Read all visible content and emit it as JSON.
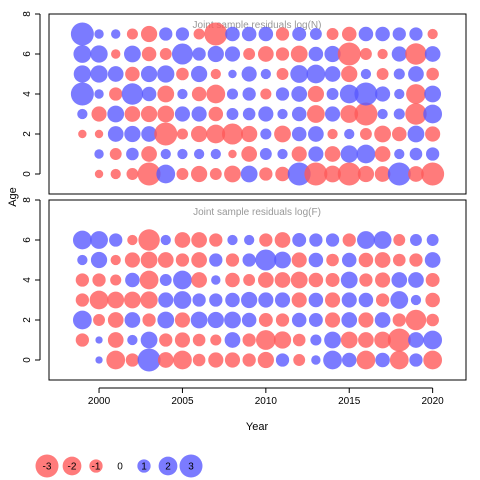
{
  "colors": {
    "negative": "#ff5a5a",
    "positive": "#5a5aff",
    "title": "#999999"
  },
  "chart_data": {
    "type": "scatter",
    "subtype": "bubble",
    "xlabel": "Year",
    "ylabel": "Age",
    "xlim": [
      1997,
      2022
    ],
    "ylim": [
      -1,
      8
    ],
    "x_ticks": [
      2000,
      2005,
      2010,
      2015,
      2020
    ],
    "y_ticks": [
      0,
      2,
      4,
      6,
      8
    ],
    "ages": [
      0,
      1,
      2,
      3,
      4,
      5,
      6,
      7
    ],
    "legend": {
      "position": "bottom-left",
      "values": [
        -3,
        -2,
        -1,
        0,
        1,
        2,
        3
      ]
    },
    "panels": [
      {
        "title": "Joint sample residuals log(N)",
        "year_start": 1999,
        "year_end": 2020,
        "residuals_by_age": [
          [
            0,
            -0.4,
            -0.6,
            -0.8,
            -3.0,
            2.0,
            -0.8,
            -1.5,
            -0.8,
            -1.6,
            1.6,
            -1.0,
            -1.2,
            3.0,
            -3.0,
            -1.6,
            -3.0,
            -1.5,
            -1.4,
            3.0,
            -1.4,
            -3.0
          ],
          [
            0,
            0.5,
            -0.8,
            0.9,
            -1.4,
            0.6,
            0.6,
            0.6,
            0.6,
            -0.4,
            -1.4,
            0.8,
            0.6,
            -1.3,
            1.3,
            -1.4,
            1.7,
            2.0,
            -1.4,
            0.6,
            0.9,
            1.0
          ],
          [
            -0.4,
            -0.4,
            1.4,
            1.5,
            1.4,
            -3.0,
            -0.7,
            -1.5,
            -2.0,
            -2.5,
            -1.5,
            0.7,
            -1.6,
            1.2,
            1.4,
            -0.6,
            0.6,
            -0.8,
            -1.6,
            -1.2,
            1.6,
            -1.3
          ],
          [
            0.6,
            -1.3,
            1.6,
            -1.4,
            -1.5,
            -1.6,
            1.3,
            1.3,
            -1.2,
            0.8,
            0.9,
            1.3,
            0.6,
            1.2,
            -1.8,
            1.3,
            -1.8,
            -3.0,
            0.6,
            0.7,
            -2.6,
            2.0
          ],
          [
            3.0,
            0.5,
            -1.0,
            2.6,
            1.2,
            -1.6,
            0.6,
            -1.2,
            -2.0,
            0.7,
            1.0,
            -0.7,
            1.0,
            1.4,
            -1.5,
            0.8,
            2.0,
            3.0,
            1.3,
            0.6,
            -2.2,
            1.6
          ],
          [
            1.7,
            1.7,
            1.4,
            -1.2,
            1.5,
            1.7,
            -0.9,
            1.5,
            -0.6,
            0.4,
            1.3,
            0.6,
            -0.8,
            1.8,
            2.0,
            1.4,
            -1.5,
            0.6,
            -0.8,
            0.7,
            1.4,
            -0.9
          ],
          [
            1.8,
            1.7,
            -0.5,
            1.6,
            -1.2,
            -0.8,
            2.5,
            1.0,
            1.5,
            1.3,
            -0.8,
            -1.4,
            -1.0,
            -1.6,
            1.2,
            1.5,
            -3.0,
            -0.8,
            -0.6,
            1.3,
            -2.6,
            1.4
          ],
          [
            3.0,
            0.5,
            0.5,
            -0.7,
            -1.5,
            1.0,
            1.0,
            -0.7,
            -3.0,
            1.2,
            1.2,
            1.2,
            -1.0,
            1.1,
            0.8,
            -0.8,
            -1.2,
            1.2,
            1.2,
            1.0,
            1.0,
            -0.6
          ]
        ]
      },
      {
        "title": "Joint sample residuals log(F)",
        "year_start": 1999,
        "year_end": 2020,
        "residuals_by_age": [
          [
            0,
            0.3,
            -2.0,
            -1.0,
            3.0,
            -1.4,
            -2.0,
            -0.9,
            -1.3,
            -1.3,
            -1.0,
            -1.5,
            1.0,
            -0.8,
            0.5,
            2.0,
            1.2,
            -2.0,
            1.2,
            -2.0,
            1.0,
            -2.0
          ],
          [
            -1.0,
            0.3,
            -1.4,
            0.6,
            1.6,
            -1.0,
            -1.3,
            -0.9,
            -0.7,
            1.4,
            -1.0,
            -2.2,
            -1.7,
            -0.9,
            0.7,
            1.6,
            -1.6,
            -1.4,
            -1.6,
            -3.0,
            1.4,
            2.0
          ],
          [
            2.0,
            -0.8,
            -1.4,
            1.4,
            -1.0,
            1.6,
            -1.3,
            1.6,
            1.5,
            1.6,
            1.2,
            -1.1,
            -1.0,
            1.2,
            1.1,
            -1.3,
            1.4,
            -1.3,
            1.4,
            -1.0,
            -2.4,
            -0.9
          ],
          [
            -1.0,
            -2.0,
            -1.6,
            -1.6,
            -1.7,
            1.3,
            1.8,
            1.0,
            1.0,
            1.2,
            1.5,
            1.3,
            1.3,
            -1.3,
            1.2,
            -1.3,
            1.3,
            1.2,
            -1.0,
            1.8,
            0.6,
            -1.2
          ],
          [
            -1.0,
            -1.0,
            -0.7,
            1.2,
            -2.0,
            0.8,
            2.0,
            -1.4,
            0.5,
            -1.2,
            -0.8,
            -1.4,
            -1.4,
            -1.6,
            -1.2,
            -1.1,
            1.6,
            -1.0,
            -1.3,
            1.4,
            1.4,
            -1.1
          ],
          [
            0.6,
            1.5,
            -0.6,
            -1.3,
            -1.6,
            -1.4,
            -1.0,
            -1.4,
            1.0,
            -1.0,
            1.0,
            2.5,
            1.6,
            -1.3,
            1.2,
            -0.9,
            1.2,
            -1.2,
            -1.4,
            -0.9,
            -1.0,
            1.4
          ],
          [
            2.0,
            1.8,
            1.0,
            -0.6,
            -2.6,
            0.6,
            -1.4,
            -1.4,
            -1.0,
            0.6,
            0.6,
            -1.0,
            -1.4,
            1.1,
            1.0,
            1.0,
            -1.0,
            1.8,
            1.8,
            -0.8,
            0.8,
            0.8
          ],
          [
            0,
            0,
            0,
            0,
            0,
            0,
            0,
            0,
            0,
            0,
            0,
            0,
            0,
            0,
            0,
            0,
            0,
            0,
            0,
            0,
            0,
            0
          ]
        ]
      }
    ]
  }
}
